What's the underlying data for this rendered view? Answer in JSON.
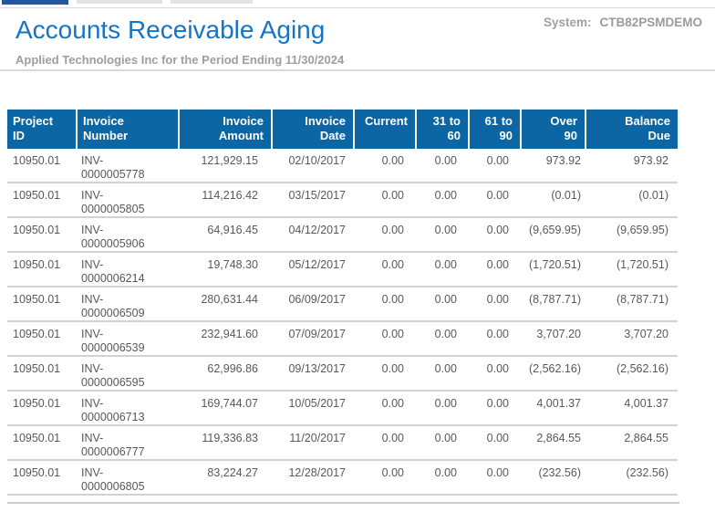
{
  "page": {
    "title": "Accounts Receivable Aging",
    "subtitle": "Applied Technologies Inc for the Period Ending 11/30/2024",
    "system_label": "System:",
    "system_value": "CTB82PSMDEMO"
  },
  "colors": {
    "title_blue": "#1575c4",
    "table_header_bg": "#0b66a3",
    "active_tab_blue": "#27549b",
    "muted_gray_text": "#9e9e9e",
    "row_text_gray": "#58585a",
    "row_separator": "#d2d2d2"
  },
  "table": {
    "columns": [
      {
        "label": "Project ID",
        "align": "left"
      },
      {
        "label": "Invoice Number",
        "align": "left"
      },
      {
        "label": "Invoice Amount",
        "align": "right"
      },
      {
        "label": "Invoice Date",
        "align": "right"
      },
      {
        "label": "Current",
        "align": "right"
      },
      {
        "label": "31 to 60",
        "align": "right"
      },
      {
        "label": "61 to 90",
        "align": "right"
      },
      {
        "label": "Over 90",
        "align": "right"
      },
      {
        "label": "Balance Due",
        "align": "right"
      }
    ],
    "rows": [
      [
        "10950.01",
        "INV-0000005778",
        "121,929.15",
        "02/10/2017",
        "0.00",
        "0.00",
        "0.00",
        "973.92",
        "973.92"
      ],
      [
        "10950.01",
        "INV-0000005805",
        "114,216.42",
        "03/15/2017",
        "0.00",
        "0.00",
        "0.00",
        "(0.01)",
        "(0.01)"
      ],
      [
        "10950.01",
        "INV-0000005906",
        "64,916.45",
        "04/12/2017",
        "0.00",
        "0.00",
        "0.00",
        "(9,659.95)",
        "(9,659.95)"
      ],
      [
        "10950.01",
        "INV-0000006214",
        "19,748.30",
        "05/12/2017",
        "0.00",
        "0.00",
        "0.00",
        "(1,720.51)",
        "(1,720.51)"
      ],
      [
        "10950.01",
        "INV-0000006509",
        "280,631.44",
        "06/09/2017",
        "0.00",
        "0.00",
        "0.00",
        "(8,787.71)",
        "(8,787.71)"
      ],
      [
        "10950.01",
        "INV-0000006539",
        "232,941.60",
        "07/09/2017",
        "0.00",
        "0.00",
        "0.00",
        "3,707.20",
        "3,707.20"
      ],
      [
        "10950.01",
        "INV-0000006595",
        "62,996.86",
        "09/13/2017",
        "0.00",
        "0.00",
        "0.00",
        "(2,562.16)",
        "(2,562.16)"
      ],
      [
        "10950.01",
        "INV-0000006713",
        "169,744.07",
        "10/05/2017",
        "0.00",
        "0.00",
        "0.00",
        "4,001.37",
        "4,001.37"
      ],
      [
        "10950.01",
        "INV-0000006777",
        "119,336.83",
        "11/20/2017",
        "0.00",
        "0.00",
        "0.00",
        "2,864.55",
        "2,864.55"
      ],
      [
        "10950.01",
        "INV-0000006805",
        "83,224.27",
        "12/28/2017",
        "0.00",
        "0.00",
        "0.00",
        "(232.56)",
        "(232.56)"
      ]
    ]
  }
}
